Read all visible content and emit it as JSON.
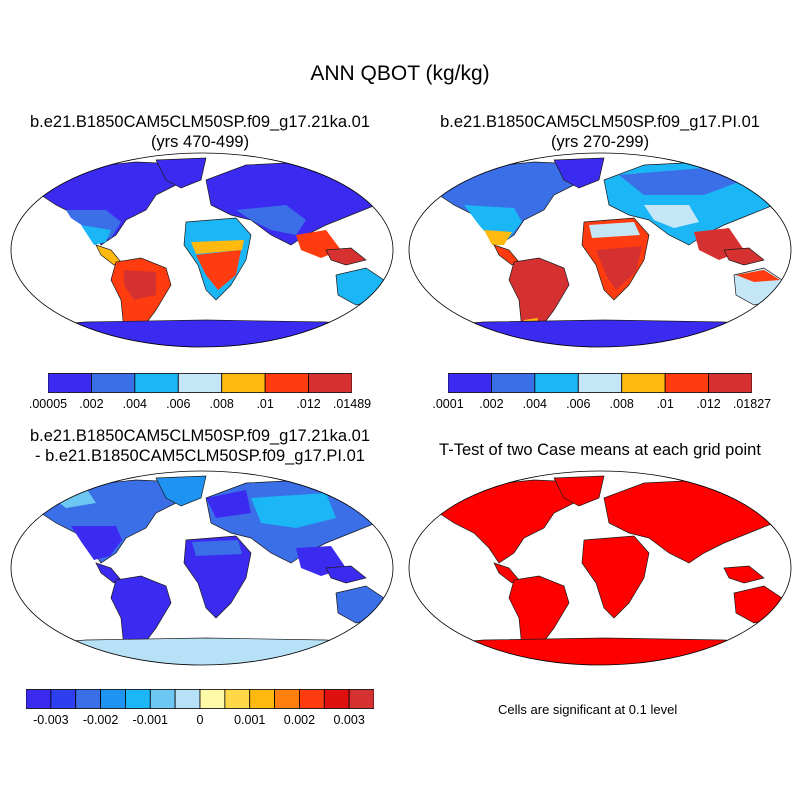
{
  "title": "ANN QBOT (kg/kg)",
  "panels": [
    {
      "title_line1": "b.e21.B1850CAM5CLM50SP.f09_g17.21ka.01",
      "title_line2": "(yrs 470-499)",
      "colorbar": {
        "colors": [
          "#3b2bf0",
          "#3b6fe8",
          "#1ab6f5",
          "#c4e6f7",
          "#ffb90f",
          "#ff3c0f",
          "#d63131"
        ],
        "labels": [
          ".00005",
          ".002",
          ".004",
          ".006",
          ".008",
          ".01",
          ".012",
          ".01489"
        ]
      }
    },
    {
      "title_line1": "b.e21.B1850CAM5CLM50SP.f09_g17.PI.01",
      "title_line2": "(yrs 270-299)",
      "colorbar": {
        "colors": [
          "#3b2bf0",
          "#3b6fe8",
          "#1ab6f5",
          "#c4e6f7",
          "#ffb90f",
          "#ff3c0f",
          "#d63131"
        ],
        "labels": [
          ".0001",
          ".002",
          ".004",
          ".006",
          ".008",
          ".01",
          ".012",
          ".01827"
        ]
      }
    },
    {
      "title_line1": "b.e21.B1850CAM5CLM50SP.f09_g17.21ka.01",
      "title_line2": "- b.e21.B1850CAM5CLM50SP.f09_g17.PI.01",
      "colorbar": {
        "colors": [
          "#3b2bf0",
          "#2d3ff0",
          "#3b6fe8",
          "#1f93f2",
          "#1ab6f5",
          "#6cc7f2",
          "#b7e1f7",
          "#fffaa8",
          "#ffd84a",
          "#ffb90f",
          "#ff7f0f",
          "#ff3c0f",
          "#e01010",
          "#d63131"
        ],
        "labels": [
          "-0.003",
          "-0.002",
          "-0.001",
          "0",
          "0.001",
          "0.002",
          "0.003"
        ]
      }
    },
    {
      "title_line1": "T-Test of two Case means at each grid point",
      "note": "Cells are significant at 0.1 level"
    }
  ]
}
